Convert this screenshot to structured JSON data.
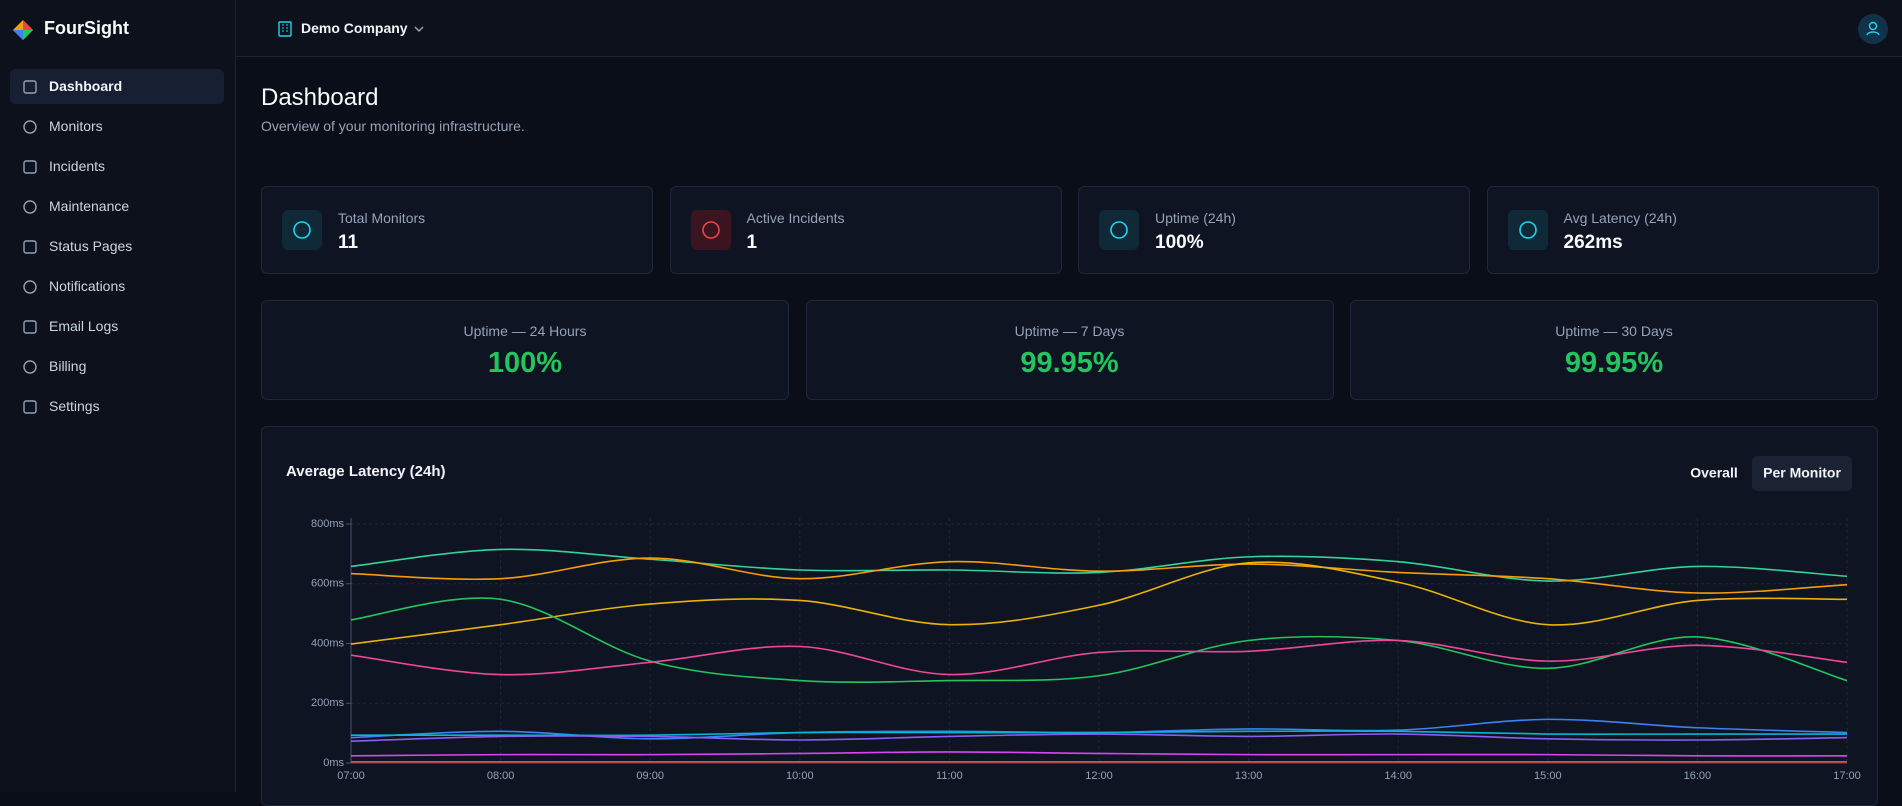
{
  "app": {
    "brand": "FourSight",
    "company": "Demo Company",
    "nav": [
      "Dashboard",
      "Monitors",
      "Incidents",
      "Maintenance",
      "Status Pages",
      "Notifications",
      "Email Logs",
      "Billing",
      "Settings"
    ]
  },
  "header": {
    "title": "Dashboard",
    "subtitle": "Overview of your monitoring infrastructure."
  },
  "stats": [
    {
      "label": "Total Monitors",
      "value": 11
    },
    {
      "label": "Active Incidents",
      "value": 1
    },
    {
      "label": "Uptime (24h)",
      "value": "100%"
    },
    {
      "label": "Avg Latency (24h)",
      "value": "262ms"
    }
  ],
  "uptime": [
    {
      "label": "Uptime — 24 Hours",
      "value": "100%"
    },
    {
      "label": "Uptime — 7 Days",
      "value": "99.95%"
    },
    {
      "label": "Uptime — 30 Days",
      "value": "99.95%"
    }
  ],
  "chart_data": {
    "type": "line",
    "title": "Average Latency (24h)",
    "toggle": [
      "Overall",
      "Per Monitor"
    ],
    "categories": [
      "07:00",
      "08:00",
      "09:00",
      "10:00",
      "11:00",
      "12:00",
      "13:00",
      "14:00",
      "15:00",
      "16:00",
      "17:00"
    ],
    "series": [
      {
        "color": "#34d399",
        "values": [
          658,
          715,
          682,
          646,
          646,
          638,
          690,
          674,
          609,
          658,
          625
        ]
      },
      {
        "color": "#f59e0b",
        "values": [
          634,
          617,
          686,
          617,
          674,
          642,
          666,
          638,
          617,
          569,
          597
        ]
      },
      {
        "color": "#eab308",
        "values": [
          398,
          463,
          532,
          544,
          463,
          528,
          670,
          605,
          463,
          544,
          548
        ]
      },
      {
        "color": "#22c55e",
        "values": [
          479,
          548,
          341,
          276,
          276,
          292,
          410,
          410,
          317,
          422,
          276
        ]
      },
      {
        "color": "#ec4899",
        "values": [
          361,
          296,
          337,
          390,
          296,
          370,
          374,
          410,
          341,
          394,
          337
        ]
      },
      {
        "color": "#3b82f6",
        "values": [
          85,
          106,
          81,
          102,
          106,
          102,
          114,
          110,
          146,
          118,
          102
        ]
      },
      {
        "color": "#06b6d4",
        "values": [
          93,
          93,
          93,
          102,
          102,
          102,
          106,
          106,
          97,
          97,
          97
        ]
      },
      {
        "color": "#8b5cf6",
        "values": [
          73,
          89,
          89,
          77,
          89,
          97,
          89,
          97,
          81,
          77,
          85
        ]
      },
      {
        "color": "#d946ef",
        "values": [
          24,
          28,
          28,
          32,
          37,
          32,
          28,
          28,
          28,
          24,
          24
        ]
      },
      {
        "color": "#ef4444",
        "values": [
          4,
          4,
          4,
          4,
          4,
          4,
          4,
          4,
          4,
          4,
          4
        ]
      }
    ],
    "ylim": [
      0,
      800
    ],
    "yticks": [
      {
        "value": 0,
        "label": "0ms"
      },
      {
        "value": 200,
        "label": "200ms"
      },
      {
        "value": 400,
        "label": "400ms"
      },
      {
        "value": 600,
        "label": "600ms"
      },
      {
        "value": 800,
        "label": "800ms"
      }
    ],
    "grid": true
  }
}
